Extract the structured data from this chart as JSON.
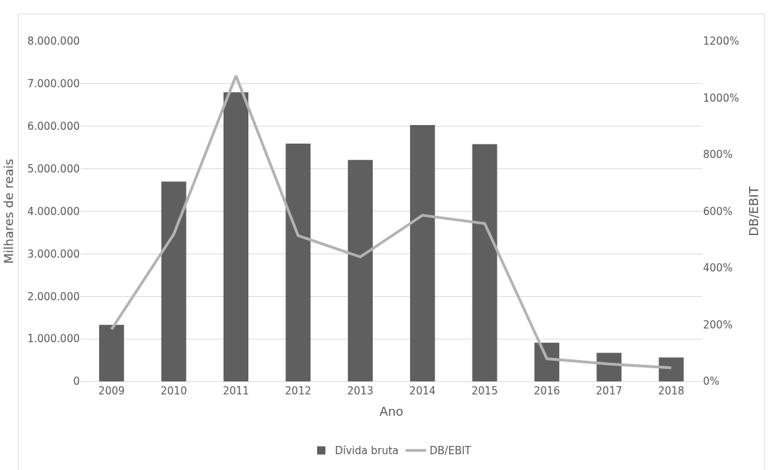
{
  "chart_data": {
    "type": "bar",
    "xlabel": "Ano",
    "ylabel": "Milhares de reais",
    "y2label": "DB/EBIT",
    "categories": [
      "2009",
      "2010",
      "2011",
      "2012",
      "2013",
      "2014",
      "2015",
      "2016",
      "2017",
      "2018"
    ],
    "series": [
      {
        "name": "Dívida bruta",
        "color": "#5f5f5f",
        "values": [
          1330000,
          4700000,
          6800000,
          5590000,
          5210000,
          6030000,
          5580000,
          910000,
          670000,
          560000
        ]
      },
      {
        "name": "DB/EBIT",
        "type": "line",
        "axis": "y2",
        "color": "#b3b3b3",
        "values": [
          184,
          519,
          1078,
          514,
          439,
          586,
          557,
          80,
          61,
          48
        ]
      }
    ],
    "ylim": [
      0,
      8000000
    ],
    "yticks": [
      0,
      {
        "value": 1000000,
        "label": "1.000.000"
      },
      {
        "value": 2000000,
        "label": "2.000.000"
      },
      {
        "value": 3000000,
        "label": "3.000.000"
      },
      {
        "value": 4000000,
        "label": "4.000.000"
      },
      {
        "value": 5000000,
        "label": "5.000.000"
      },
      {
        "value": 6000000,
        "label": "6.000.000"
      },
      {
        "value": 7000000,
        "label": "7.000.000"
      },
      {
        "value": 8000000,
        "label": "8.000.000"
      }
    ],
    "y2lim": [
      0,
      1200
    ],
    "y2ticks": [
      {
        "value": 0,
        "label": "0%"
      },
      {
        "value": 200,
        "label": "200%"
      },
      {
        "value": 400,
        "label": "400%"
      },
      {
        "value": 600,
        "label": "600%"
      },
      {
        "value": 800,
        "label": "800%"
      },
      {
        "value": 1000,
        "label": "1000%"
      },
      {
        "value": 1200,
        "label": "1200%"
      }
    ],
    "grid": "y",
    "legend": "bottom",
    "marker": "none",
    "line_style": "solid"
  }
}
